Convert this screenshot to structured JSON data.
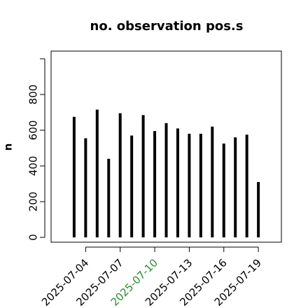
{
  "chart_data": {
    "type": "spike",
    "title": "no. observation pos.s",
    "y_label": "n",
    "x": [
      "2025-07-03",
      "2025-07-04",
      "2025-07-05",
      "2025-07-06",
      "2025-07-07",
      "2025-07-08",
      "2025-07-09",
      "2025-07-10",
      "2025-07-11",
      "2025-07-12",
      "2025-07-13",
      "2025-07-14",
      "2025-07-15",
      "2025-07-16",
      "2025-07-17",
      "2025-07-18",
      "2025-07-19"
    ],
    "values": [
      675,
      555,
      715,
      440,
      695,
      570,
      685,
      595,
      640,
      610,
      580,
      580,
      620,
      525,
      560,
      575,
      310
    ],
    "color": "#000000",
    "xlim": [
      "2025-07-01",
      "2025-07-21"
    ],
    "xticks": [
      "2025-07-04",
      "2025-07-07",
      "2025-07-10",
      "2025-07-13",
      "2025-07-16",
      "2025-07-19"
    ],
    "xtick_colors": [
      "#000000",
      "#000000",
      "#2e8b2e",
      "#000000",
      "#000000",
      "#000000"
    ],
    "ylim": [
      -27,
      1043
    ],
    "yticks": [
      0,
      200,
      400,
      600,
      800
    ],
    "yticks_unlabeled": [
      1000
    ],
    "grid": false
  }
}
